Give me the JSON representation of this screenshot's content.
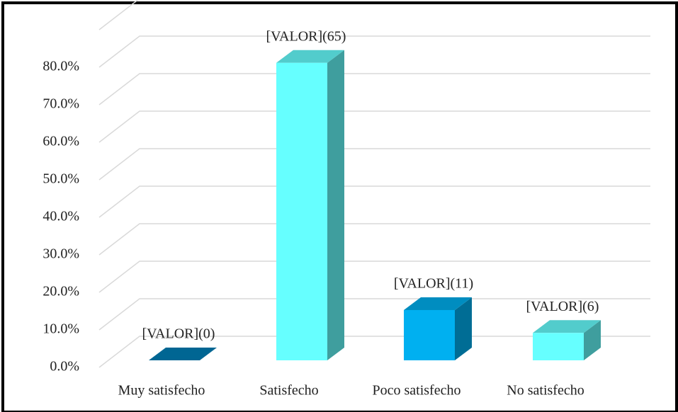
{
  "chart_data": {
    "type": "bar3d",
    "categories": [
      "Muy satisfecho",
      "Satisfecho",
      "Poco satisfecho",
      "No satisfecho"
    ],
    "values": [
      0,
      79.3,
      13.4,
      7.3
    ],
    "labels": [
      "[VALOR](0)",
      "[VALOR](65)",
      "[VALOR](11)",
      "[VALOR](6)"
    ],
    "colors": [
      "#0080b8",
      "#66ffff",
      "#00b0f0",
      "#66ffff"
    ],
    "ylim": [
      0,
      90
    ],
    "yticks": [
      {
        "value": 0,
        "label": "0.0%"
      },
      {
        "value": 10,
        "label": "10.0%"
      },
      {
        "value": 20,
        "label": "20.0%"
      },
      {
        "value": 30,
        "label": "30.0%"
      },
      {
        "value": 40,
        "label": "40.0%"
      },
      {
        "value": 50,
        "label": "50.0%"
      },
      {
        "value": 60,
        "label": "60.0%"
      },
      {
        "value": 70,
        "label": "70.0%"
      },
      {
        "value": 80,
        "label": "80.0%"
      }
    ],
    "grid": true
  }
}
